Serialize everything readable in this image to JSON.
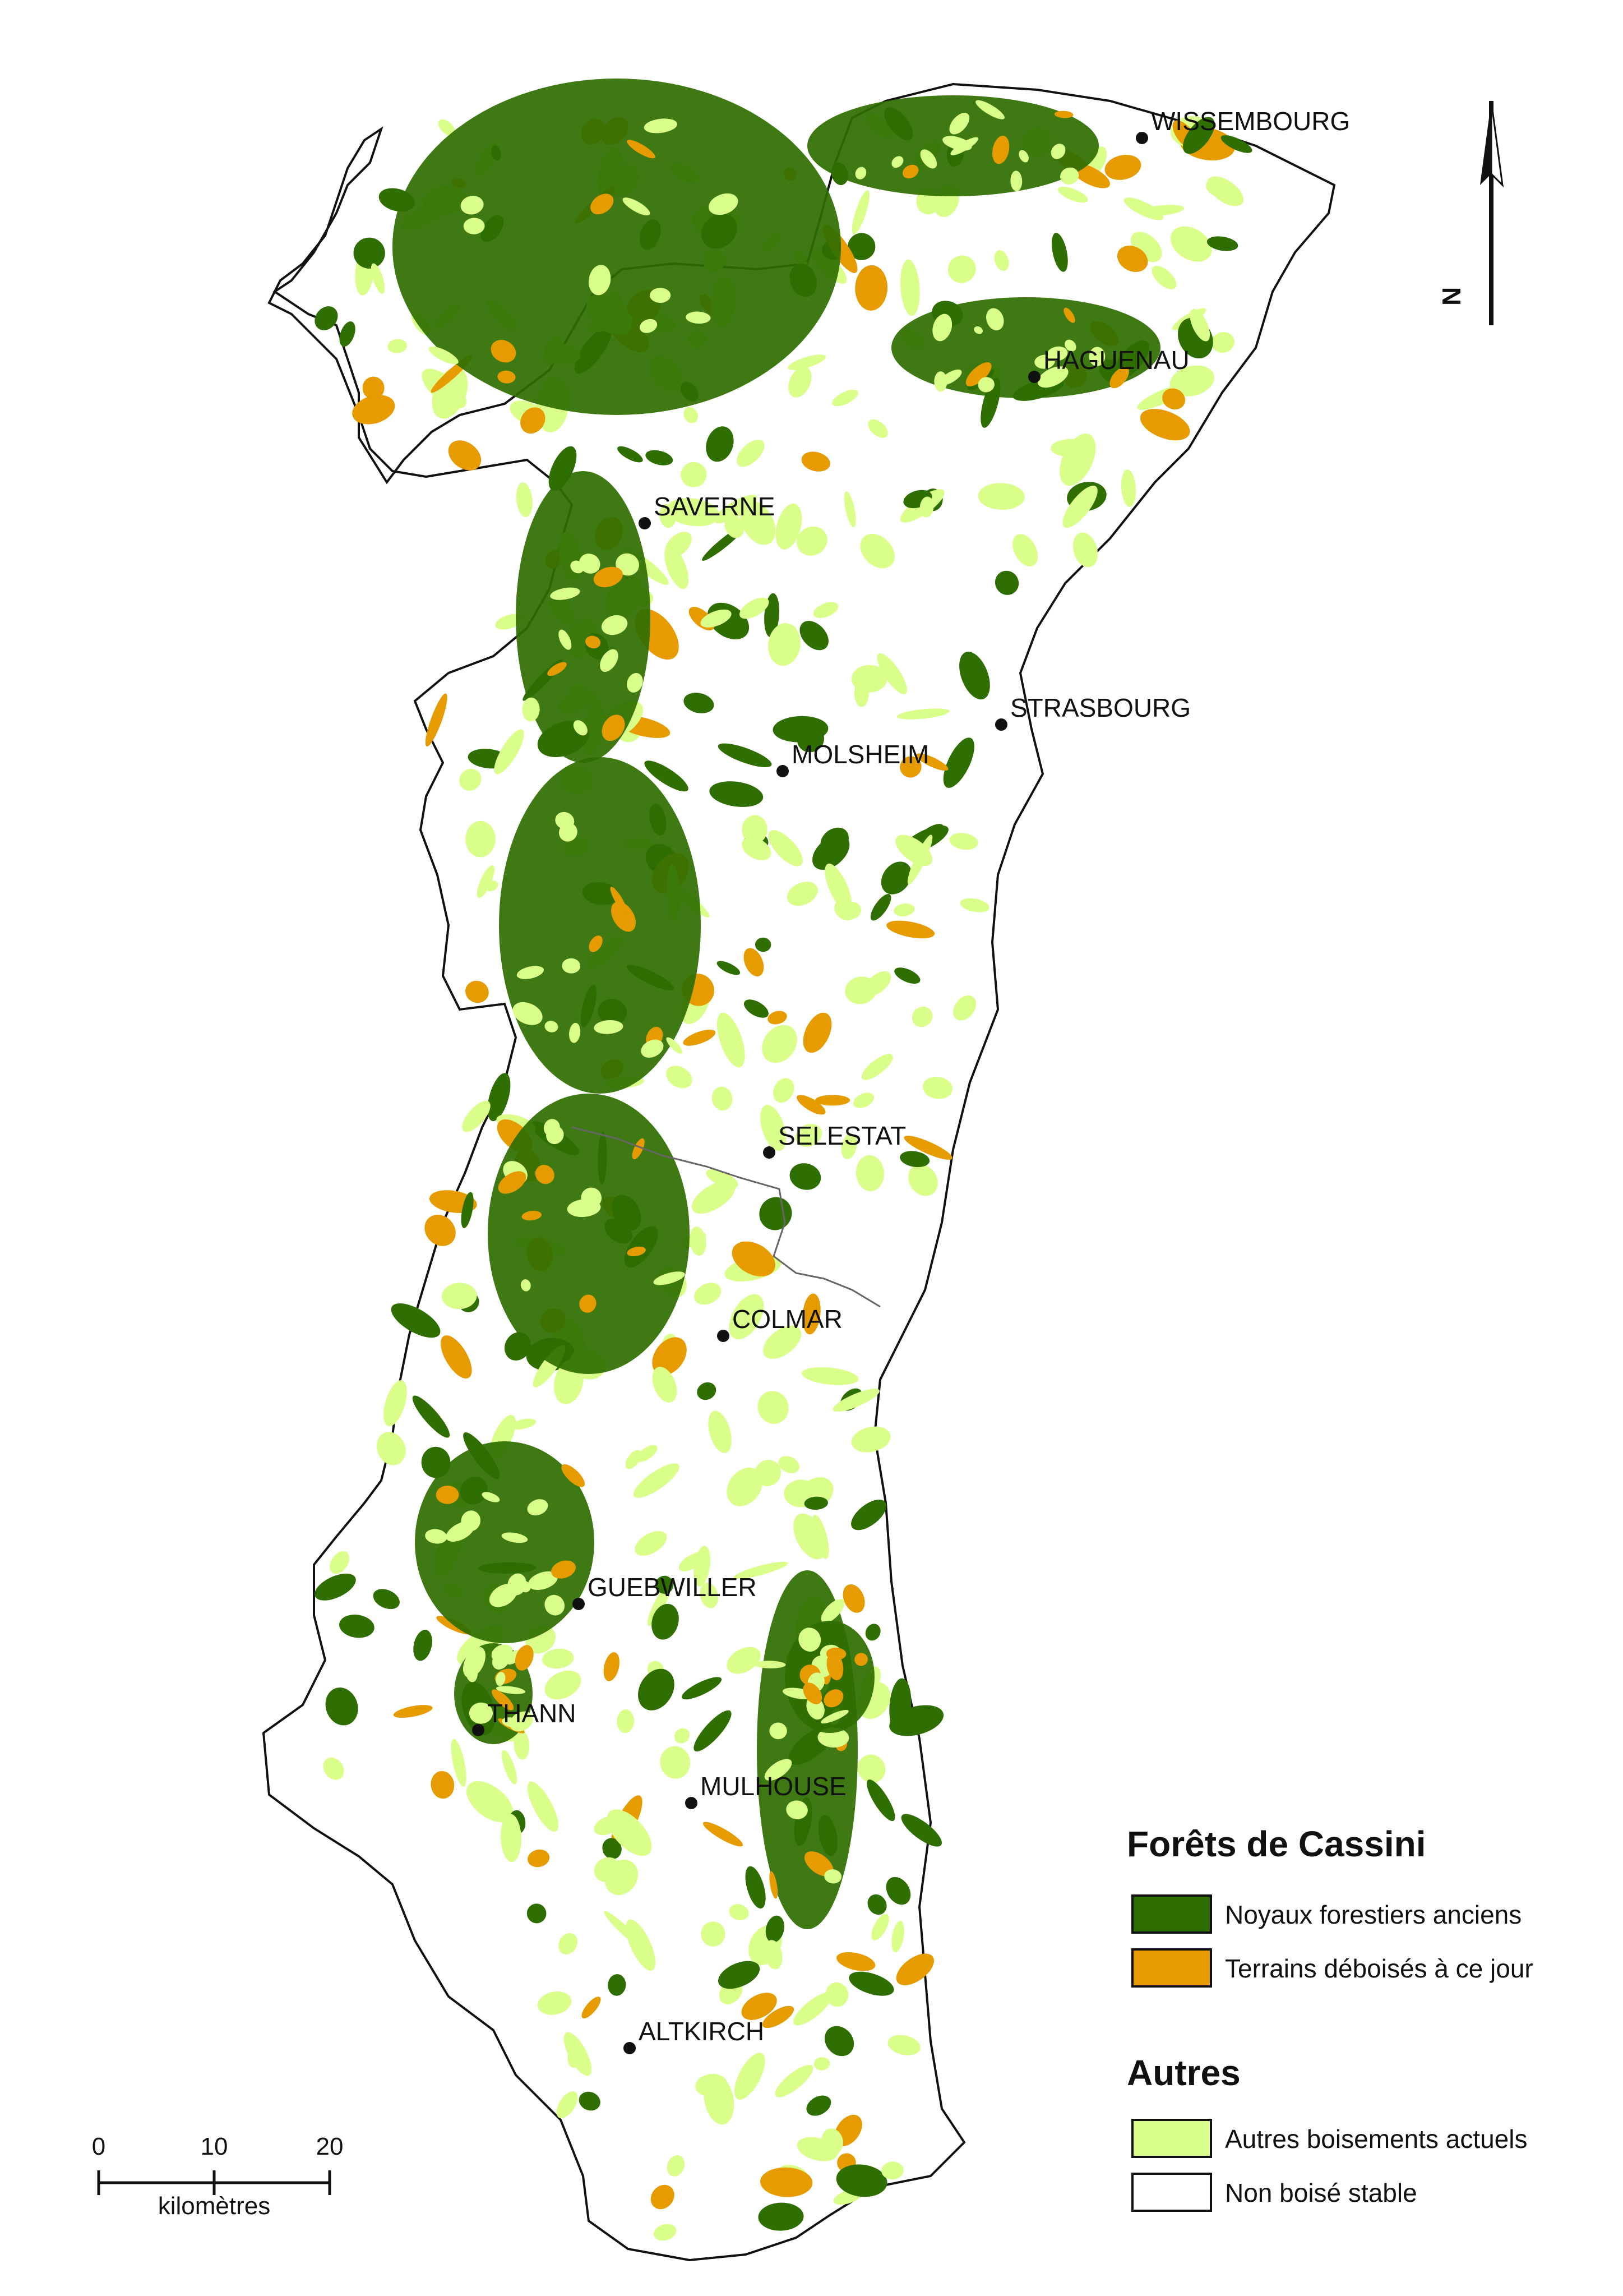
{
  "colors": {
    "ancient_forest": "#2f6e00",
    "deforested": "#e69b00",
    "other_woodland": "#d9ff8a",
    "non_wooded": "#ffffff",
    "outline": "#111111"
  },
  "cities": [
    {
      "name": "WISSEMBOURG"
    },
    {
      "name": "HAGUENAU"
    },
    {
      "name": "SAVERNE"
    },
    {
      "name": "STRASBOURG"
    },
    {
      "name": "MOLSHEIM"
    },
    {
      "name": "SELESTAT"
    },
    {
      "name": "COLMAR"
    },
    {
      "name": "GUEBWILLER"
    },
    {
      "name": "THANN"
    },
    {
      "name": "MULHOUSE"
    },
    {
      "name": "ALTKIRCH"
    }
  ],
  "north_arrow": {
    "label": "N"
  },
  "scale_bar": {
    "ticks": [
      "0",
      "10",
      "20"
    ],
    "unit": "kilomètres"
  },
  "legend": {
    "title_cassini": "Forêts de Cassini",
    "items_cassini": [
      {
        "label": "Noyaux forestiers anciens",
        "color_key": "ancient_forest"
      },
      {
        "label": "Terrains déboisés à ce jour",
        "color_key": "deforested"
      }
    ],
    "title_autres": "Autres",
    "items_autres": [
      {
        "label": "Autres boisements actuels",
        "color_key": "other_woodland"
      },
      {
        "label": "Non boisé stable",
        "color_key": "non_wooded"
      }
    ]
  }
}
